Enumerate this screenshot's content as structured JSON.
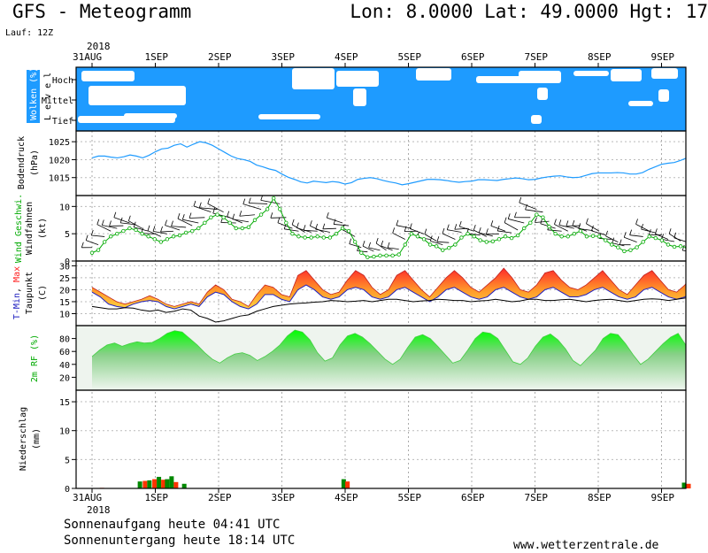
{
  "header": {
    "title": "GFS - Meteogramm",
    "coords": "Lon: 8.0000 Lat: 49.0000 Hgt: 17",
    "run": "Lauf: 12Z"
  },
  "footer": {
    "sunrise": "Sonnenaufgang heute 04:41 UTC",
    "sunset": "Sonnenuntergang heute 18:14 UTC",
    "url": "www.wetterzentrale.de"
  },
  "chart_data": {
    "type": "line",
    "x_start": "2018-08-31 00:00",
    "x_end": "2018-09-09 12:00",
    "date_ticks": [
      "31AUG",
      "1SEP",
      "2SEP",
      "3SEP",
      "4SEP",
      "5SEP",
      "6SEP",
      "7SEP",
      "8SEP",
      "9SEP"
    ],
    "year_label": "2018",
    "colors": {
      "cloud_bg": "#1e9bff",
      "pressure": "#1e9bff",
      "wind": "#00aa00",
      "tmax": "#ff2020",
      "tmin": "#2020c0",
      "rh": "#00cc00",
      "precip_green": "#008800",
      "precip_red": "#ff3300"
    },
    "panels": {
      "clouds": {
        "ylabel": "Wolken (%)",
        "ylabel_color": "#1e9bff",
        "level_label": "L e v e l",
        "levels": [
          "Hoch",
          "Mittel",
          "Tief"
        ]
      },
      "pressure": {
        "ylabel": "Bodendruck",
        "unit": "(hPa)",
        "ylim": [
          1010,
          1028
        ],
        "ticks": [
          1015,
          1020,
          1025
        ],
        "values": [
          1020.5,
          1021,
          1021,
          1020.7,
          1020.5,
          1020.8,
          1021.3,
          1021,
          1020.5,
          1021.2,
          1022.2,
          1023,
          1023.2,
          1024,
          1024.4,
          1023.5,
          1024.3,
          1025,
          1024.7,
          1024,
          1023,
          1022,
          1021,
          1020.3,
          1020,
          1019.5,
          1018.5,
          1018,
          1017.4,
          1017,
          1016,
          1015.1,
          1014.5,
          1013.8,
          1013.5,
          1014,
          1013.8,
          1013.6,
          1013.9,
          1013.7,
          1013.2,
          1013.6,
          1014.5,
          1014.8,
          1015,
          1014.7,
          1014.2,
          1013.8,
          1013.5,
          1013,
          1013.3,
          1013.7,
          1014.1,
          1014.5,
          1014.5,
          1014.4,
          1014.2,
          1013.9,
          1013.7,
          1013.9,
          1014,
          1014.4,
          1014.4,
          1014.3,
          1014.2,
          1014.5,
          1014.7,
          1014.9,
          1014.7,
          1014.4,
          1014.5,
          1014.9,
          1015.2,
          1015.4,
          1015.5,
          1015.2,
          1015,
          1015.1,
          1015.6,
          1016.1,
          1016.3,
          1016.3,
          1016.3,
          1016.4,
          1016.3,
          1016,
          1016,
          1016.4,
          1017.3,
          1018,
          1018.7,
          1019,
          1019.2,
          1019.8,
          1020.5,
          1020.1
        ]
      },
      "wind": {
        "ylabel": "Wind Geschwi.",
        "ylabel_color": "#00aa00",
        "sublabel": "Windfahnen",
        "unit": "(kt)",
        "ylim": [
          0,
          12
        ],
        "ticks": [
          0,
          5,
          10
        ],
        "values": [
          1.5,
          2,
          3.5,
          4.5,
          5,
          5.5,
          6,
          5.7,
          5,
          4.5,
          4,
          3.5,
          4,
          4.5,
          4.7,
          5.2,
          5.5,
          6,
          7,
          8,
          8.5,
          8,
          7,
          6,
          6,
          6.2,
          7.5,
          8.5,
          9.5,
          11.5,
          9.5,
          7,
          5,
          4.5,
          4.3,
          4.3,
          4.5,
          4.3,
          4.3,
          5,
          6,
          5.5,
          3.5,
          1.5,
          0.7,
          0.8,
          1,
          1,
          1,
          1.2,
          3,
          5,
          4.5,
          4,
          3,
          2.7,
          2,
          2.4,
          3,
          4.3,
          5,
          4.5,
          3.8,
          3.5,
          3.6,
          4,
          4.5,
          4.2,
          4.7,
          6,
          7,
          8.5,
          8,
          6.3,
          5,
          4.5,
          4.5,
          5,
          5.5,
          4.5,
          4.6,
          4.5,
          3.8,
          3,
          2.5,
          1.8,
          2,
          2.5,
          3.5,
          4.5,
          4.2,
          3.8,
          3,
          2.6,
          2.7,
          2.5,
          0.7
        ]
      },
      "temperature": {
        "ylabel_parts": [
          "T-Min",
          "Max"
        ],
        "sublabel": "Taupunkt",
        "unit": "(C)",
        "ylim": [
          5,
          32
        ],
        "ticks": [
          10,
          15,
          20,
          25,
          30
        ],
        "tmax": [
          21,
          19,
          17,
          15,
          14,
          15,
          16,
          17.5,
          16,
          14,
          13,
          14,
          15,
          14,
          19,
          22,
          20,
          16,
          15,
          13,
          18,
          22,
          21,
          18,
          17,
          26,
          28,
          24,
          20,
          18,
          19,
          24,
          28,
          26,
          21,
          18,
          20,
          26,
          28,
          24,
          20,
          17,
          21,
          25,
          28,
          25,
          21,
          19,
          22,
          25,
          29,
          25,
          20,
          19,
          22,
          27,
          28,
          24,
          21,
          20,
          22,
          25,
          28,
          24,
          20,
          18,
          22,
          26,
          28,
          24,
          20,
          19,
          22,
          27
        ],
        "tmin": [
          19,
          17,
          14,
          13,
          12.5,
          14,
          15,
          15.5,
          15,
          13,
          12,
          13,
          14,
          13,
          17,
          19,
          18,
          15,
          13,
          12,
          14,
          18,
          18,
          16,
          15,
          20,
          22,
          20,
          17,
          16,
          17,
          20,
          21,
          20,
          17,
          16,
          17,
          20,
          21,
          19,
          17,
          15,
          17,
          20,
          21,
          19,
          17,
          16,
          17,
          20,
          21,
          19,
          17,
          16,
          17,
          20,
          21,
          19,
          17,
          17,
          18,
          20,
          21,
          19,
          17,
          16,
          17,
          20,
          21,
          19,
          17,
          16,
          17,
          20
        ],
        "dewpoint": [
          13,
          12.5,
          12,
          12,
          12.5,
          12.3,
          11.5,
          11,
          11.5,
          10.5,
          11,
          12,
          11.5,
          9,
          8,
          6.5,
          7,
          8,
          9,
          9.5,
          11,
          12,
          13,
          13.5,
          14,
          14.3,
          14.5,
          14.8,
          15,
          15.5,
          15.3,
          15,
          15.2,
          15.5,
          15,
          15.5,
          16,
          16,
          15.5,
          15,
          15.3,
          15.5,
          16,
          15.8,
          15.5,
          15.5,
          15,
          15.3,
          15.5,
          16,
          15.5,
          15,
          15.3,
          16,
          16,
          15.5,
          15.5,
          15.8,
          16,
          15.5,
          15,
          15.5,
          15.8,
          16,
          15.5,
          15,
          15.5,
          16,
          16.2,
          16,
          15.5,
          16,
          16.5,
          17
        ]
      },
      "rh": {
        "ylabel": "2m RF (%)",
        "ylabel_color": "#00aa00",
        "ylim": [
          0,
          100
        ],
        "ticks": [
          20,
          40,
          60,
          80
        ],
        "values": [
          52,
          62,
          70,
          73,
          68,
          72,
          75,
          73,
          74,
          80,
          88,
          92,
          90,
          80,
          70,
          58,
          48,
          42,
          50,
          56,
          58,
          54,
          46,
          52,
          60,
          70,
          84,
          93,
          90,
          78,
          58,
          45,
          50,
          70,
          84,
          88,
          82,
          72,
          60,
          48,
          40,
          48,
          66,
          82,
          86,
          80,
          68,
          55,
          42,
          46,
          62,
          80,
          90,
          88,
          80,
          62,
          44,
          40,
          50,
          68,
          82,
          87,
          78,
          64,
          46,
          38,
          50,
          62,
          80,
          88,
          86,
          72,
          55,
          40,
          48,
          60,
          72,
          82,
          88,
          70,
          50
        ]
      },
      "precip": {
        "ylabel": "Niederschlag",
        "unit": "(mm)",
        "ylim": [
          0,
          17
        ],
        "ticks": [
          0,
          5,
          10,
          15
        ],
        "bars": [
          {
            "day": 0.15,
            "value": 0.1,
            "type": "red"
          },
          {
            "day": 0.75,
            "value": 1.2,
            "type": "green"
          },
          {
            "day": 0.83,
            "value": 1.3,
            "type": "red"
          },
          {
            "day": 0.9,
            "value": 1.4,
            "type": "green"
          },
          {
            "day": 0.98,
            "value": 1.6,
            "type": "red"
          },
          {
            "day": 1.05,
            "value": 2.0,
            "type": "green"
          },
          {
            "day": 1.12,
            "value": 1.5,
            "type": "red"
          },
          {
            "day": 1.18,
            "value": 1.6,
            "type": "green"
          },
          {
            "day": 1.25,
            "value": 2.1,
            "type": "green"
          },
          {
            "day": 1.32,
            "value": 1.1,
            "type": "red"
          },
          {
            "day": 1.45,
            "value": 0.8,
            "type": "green"
          },
          {
            "day": 3.97,
            "value": 1.6,
            "type": "green"
          },
          {
            "day": 4.03,
            "value": 1.2,
            "type": "red"
          },
          {
            "day": 9.35,
            "value": 1.0,
            "type": "green"
          },
          {
            "day": 9.42,
            "value": 0.8,
            "type": "red"
          }
        ]
      }
    }
  }
}
